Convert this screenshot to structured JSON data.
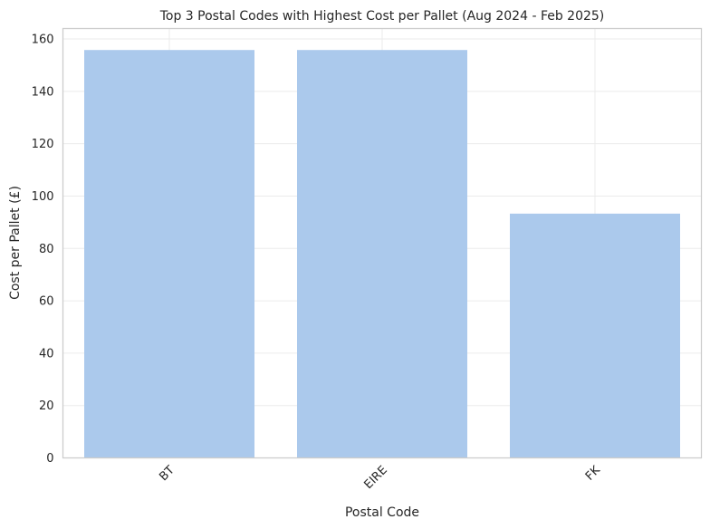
{
  "chart_data": {
    "type": "bar",
    "title": "Top 3 Postal Codes with Highest Cost per Pallet (Aug 2024 - Feb 2025)",
    "xlabel": "Postal Code",
    "ylabel": "Cost per Pallet (£)",
    "categories": [
      "BT",
      "EIRE",
      "FK"
    ],
    "values": [
      155.8,
      155.8,
      93.3
    ],
    "ylim": [
      0,
      164
    ],
    "yticks": [
      0,
      20,
      40,
      60,
      80,
      100,
      120,
      140,
      160
    ],
    "grid": true,
    "bar_color": "#abc9ec",
    "xtick_rotation": -45
  }
}
